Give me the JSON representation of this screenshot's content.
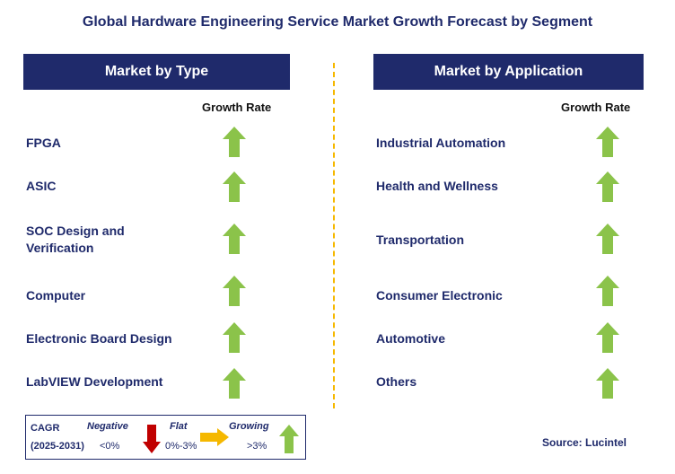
{
  "title": "Global Hardware Engineering Service Market Growth Forecast by Segment",
  "left_panel": {
    "header": "Market by Type",
    "growth_rate_label": "Growth Rate",
    "items": [
      {
        "line1": "FPGA",
        "line2": "",
        "trend": "growing"
      },
      {
        "line1": "ASIC",
        "line2": "",
        "trend": "growing"
      },
      {
        "line1": "SOC Design and",
        "line2": "Verification",
        "trend": "growing"
      },
      {
        "line1": "Computer",
        "line2": "",
        "trend": "growing"
      },
      {
        "line1": "Electronic Board Design",
        "line2": "",
        "trend": "growing"
      },
      {
        "line1": "LabVIEW Development",
        "line2": "",
        "trend": "growing"
      }
    ]
  },
  "right_panel": {
    "header": "Market by Application",
    "growth_rate_label": "Growth Rate",
    "items": [
      {
        "label": "Industrial Automation",
        "trend": "growing"
      },
      {
        "label": "Health and Wellness",
        "trend": "growing"
      },
      {
        "label": "Transportation",
        "trend": "growing"
      },
      {
        "label": "Consumer Electronic",
        "trend": "growing"
      },
      {
        "label": "Automotive",
        "trend": "growing"
      },
      {
        "label": "Others",
        "trend": "growing"
      }
    ]
  },
  "legend": {
    "cagr": "CAGR",
    "period": "(2025-2031)",
    "negative_label": "Negative",
    "negative_range": "<0%",
    "flat_label": "Flat",
    "flat_range": "0%-3%",
    "growing_label": "Growing",
    "growing_range": ">3%"
  },
  "source": "Source: Lucintel",
  "colors": {
    "navy": "#1f2a6b",
    "growing_green": "#8bc34a",
    "negative_red": "#c00000",
    "flat_orange": "#f5b800",
    "divider_yellow": "#f5b800"
  },
  "icons": {
    "growing": "up-arrow-icon",
    "negative": "down-arrow-icon",
    "flat": "right-arrow-icon"
  }
}
